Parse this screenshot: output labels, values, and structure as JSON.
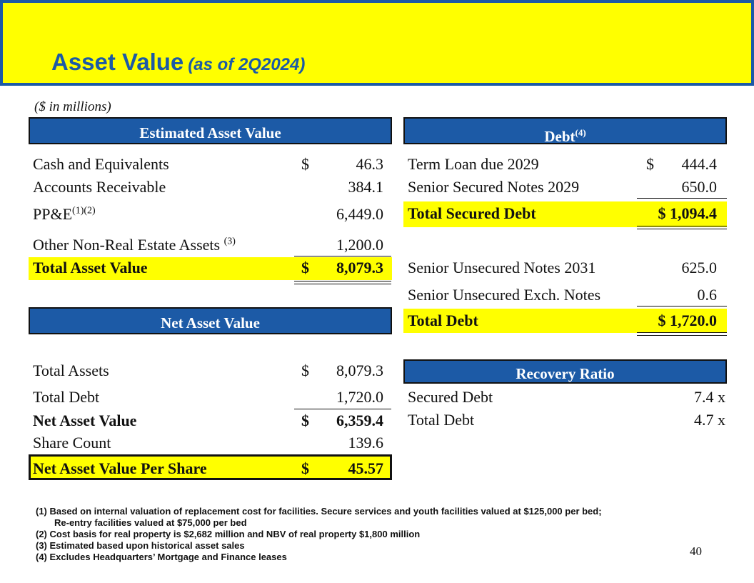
{
  "header": {
    "title": "Asset Value",
    "subtitle": "(as of 2Q2024)",
    "units": "($ in millions)"
  },
  "colors": {
    "accent": "#1c5aa6",
    "highlight": "#ffff00"
  },
  "asset_table": {
    "heading": "Estimated Asset Value",
    "rows": [
      {
        "label": "Cash and Equivalents",
        "currency": "$",
        "value": "46.3"
      },
      {
        "label": "Accounts Receivable",
        "currency": "",
        "value": "384.1"
      },
      {
        "label": "PP&E",
        "sup": "(1)(2)",
        "currency": "",
        "value": "6,449.0"
      },
      {
        "label": "Other Non-Real Estate Assets",
        "sup": "(3)",
        "currency": "",
        "value": "1,200.0"
      }
    ],
    "total": {
      "label": "Total Asset Value",
      "currency": "$",
      "value": "8,079.3"
    }
  },
  "debt_table": {
    "heading": "Debt",
    "heading_sup": "(4)",
    "rows": [
      {
        "label": "Term Loan due 2029",
        "currency": "$",
        "value": "444.4"
      },
      {
        "label": "Senior Secured Notes 2029",
        "currency": "",
        "value": "650.0"
      }
    ],
    "secured_total": {
      "label": "Total Secured Debt",
      "value": "$ 1,094.4"
    },
    "unsecured_rows": [
      {
        "label": "Senior Unsecured Notes 2031",
        "value": "625.0"
      },
      {
        "label": "Senior Unsecured Exch. Notes",
        "value": "0.6"
      }
    ],
    "total": {
      "label": "Total Debt",
      "value": "$ 1,720.0"
    }
  },
  "nav_table": {
    "heading": "Net Asset Value",
    "rows": [
      {
        "label": "Total Assets",
        "currency": "$",
        "value": "8,079.3"
      },
      {
        "label": "Total Debt",
        "currency": "",
        "value": "1,720.0"
      },
      {
        "label": "Net Asset Value",
        "currency": "$",
        "value": "6,359.4"
      },
      {
        "label": "Share Count",
        "currency": "",
        "value": "139.6"
      }
    ],
    "per_share": {
      "label": "Net Asset Value Per Share",
      "currency": "$",
      "value": "45.57"
    }
  },
  "recovery_table": {
    "heading": "Recovery Ratio",
    "rows": [
      {
        "label": "Secured Debt",
        "value": "7.4 x"
      },
      {
        "label": "Total Debt",
        "value": "4.7 x"
      }
    ]
  },
  "footnotes": [
    "(1)  Based on internal valuation of replacement cost for facilities. Secure services and youth facilities valued at $125,000 per bed;",
    "Re-entry facilities valued at $75,000 per bed",
    "(2)  Cost basis for real property is $2,682 million and NBV of real property $1,800 million",
    "(3)  Estimated based upon historical asset sales",
    "(4)  Excludes Headquarters’ Mortgage and Finance leases"
  ],
  "page_number": "40"
}
